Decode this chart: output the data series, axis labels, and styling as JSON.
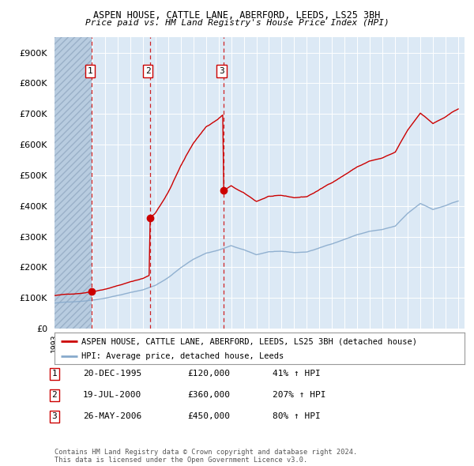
{
  "title1": "ASPEN HOUSE, CATTLE LANE, ABERFORD, LEEDS, LS25 3BH",
  "title2": "Price paid vs. HM Land Registry's House Price Index (HPI)",
  "background_color": "#dce9f5",
  "plot_bg": "#dce9f5",
  "hatch_color": "#b8cce0",
  "grid_color": "#ffffff",
  "sale_dates": [
    1995.97,
    2000.55,
    2006.4
  ],
  "sale_prices": [
    120000,
    360000,
    450000
  ],
  "sale_labels": [
    "1",
    "2",
    "3"
  ],
  "sale_info": [
    {
      "num": "1",
      "date": "20-DEC-1995",
      "price": "£120,000",
      "hpi": "41% ↑ HPI"
    },
    {
      "num": "2",
      "date": "19-JUL-2000",
      "price": "£360,000",
      "hpi": "207% ↑ HPI"
    },
    {
      "num": "3",
      "date": "26-MAY-2006",
      "price": "£450,000",
      "hpi": "80% ↑ HPI"
    }
  ],
  "legend_line1": "ASPEN HOUSE, CATTLE LANE, ABERFORD, LEEDS, LS25 3BH (detached house)",
  "legend_line2": "HPI: Average price, detached house, Leeds",
  "footer": "Contains HM Land Registry data © Crown copyright and database right 2024.\nThis data is licensed under the Open Government Licence v3.0.",
  "xmin": 1993,
  "xmax": 2025.5,
  "ymin": 0,
  "ymax": 950000,
  "red_color": "#cc0000",
  "blue_color": "#88aacc"
}
